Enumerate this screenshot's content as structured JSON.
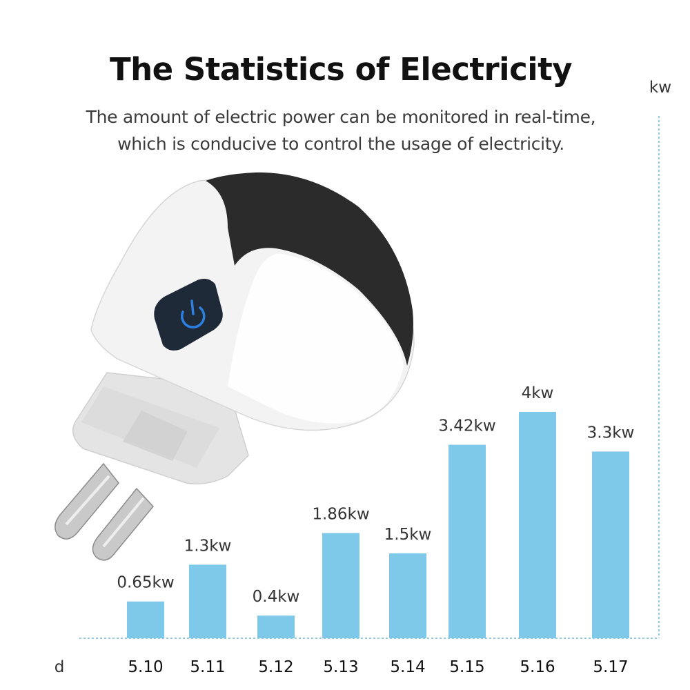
{
  "header": {
    "title": "The Statistics of Electricity",
    "subtitle_line1": "The amount of electric power can be monitored in real-time,",
    "subtitle_line2": "which is conducive to control the usage of electricity."
  },
  "product": {
    "icon": "smart-plug-illustration",
    "body_color": "#f2f2f2",
    "shell_color": "#2b2b2b",
    "button_color": "#1e2a38",
    "power_icon_color": "#2d7fe0"
  },
  "chart_data": {
    "type": "bar",
    "xlabel": "d",
    "ylabel": "kw",
    "categories": [
      "5.10",
      "5.11",
      "5.12",
      "5.13",
      "5.14",
      "5.15",
      "5.16",
      "5.17"
    ],
    "values": [
      0.65,
      1.3,
      0.4,
      1.86,
      1.5,
      3.42,
      4,
      3.3
    ],
    "data_labels": [
      "0.65kw",
      "1.3kw",
      "0.4kw",
      "1.86kw",
      "1.5kw",
      "3.42kw",
      "4kw",
      "3.3kw"
    ],
    "bar_color": "#7ec8ea",
    "axis_color": "#6fb8d8",
    "grid": false,
    "legend": "none"
  }
}
